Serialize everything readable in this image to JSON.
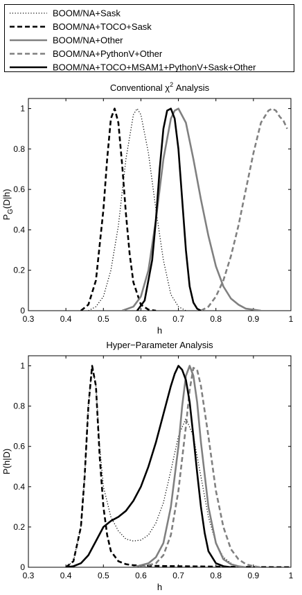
{
  "legend": {
    "placement": "top",
    "entries": [
      {
        "label": "BOOM/NA+Sask",
        "color": "#000000",
        "dash": "dotted"
      },
      {
        "label": "BOOM/NA+TOCO+Sask",
        "color": "#000000",
        "dash": "dashed"
      },
      {
        "label": "BOOM/NA+Other",
        "color": "#808080",
        "dash": "solid"
      },
      {
        "label": "BOOM/NA+PythonV+Other",
        "color": "#808080",
        "dash": "dashed"
      },
      {
        "label": "BOOM/NA+TOCO+MSAM1+PythonV+Sask+Other",
        "color": "#000000",
        "dash": "solid"
      }
    ]
  },
  "chart_data": [
    {
      "type": "line",
      "title_main": "Conventional χ",
      "title_sup": "2",
      "title_tail": " Analysis",
      "xlabel": "h",
      "ylabel_main": "P",
      "ylabel_sub": "G",
      "ylabel_tail": "(D|h)",
      "xlim": [
        0.3,
        1.0
      ],
      "ylim": [
        0,
        1.05
      ],
      "xticks": [
        "0.3",
        "0.4",
        "0.5",
        "0.6",
        "0.7",
        "0.8",
        "0.9",
        "1"
      ],
      "yticks": [
        "0",
        "0.2",
        "0.4",
        "0.6",
        "0.8",
        "1"
      ],
      "series": [
        {
          "name": "BOOM/NA+Sask",
          "color": "#000000",
          "dash": "dotted",
          "x": [
            0.46,
            0.48,
            0.5,
            0.52,
            0.54,
            0.56,
            0.58,
            0.59,
            0.6,
            0.62,
            0.64,
            0.66,
            0.68,
            0.7,
            0.72
          ],
          "y": [
            0.0,
            0.02,
            0.07,
            0.2,
            0.42,
            0.75,
            0.97,
            1.0,
            0.97,
            0.78,
            0.5,
            0.25,
            0.08,
            0.02,
            0.0
          ]
        },
        {
          "name": "BOOM/NA+TOCO+Sask",
          "color": "#000000",
          "dash": "dashed",
          "x": [
            0.44,
            0.46,
            0.48,
            0.5,
            0.51,
            0.52,
            0.53,
            0.54,
            0.55,
            0.56,
            0.57,
            0.58,
            0.6,
            0.62,
            0.64
          ],
          "y": [
            0.0,
            0.03,
            0.15,
            0.5,
            0.75,
            0.95,
            1.0,
            0.93,
            0.72,
            0.48,
            0.28,
            0.14,
            0.03,
            0.005,
            0.0
          ]
        },
        {
          "name": "BOOM/NA+Other",
          "color": "#808080",
          "dash": "solid",
          "x": [
            0.55,
            0.58,
            0.6,
            0.62,
            0.64,
            0.66,
            0.68,
            0.69,
            0.7,
            0.72,
            0.74,
            0.76,
            0.78,
            0.8,
            0.82,
            0.84,
            0.86,
            0.88,
            0.9,
            0.92
          ],
          "y": [
            0.0,
            0.02,
            0.07,
            0.2,
            0.45,
            0.75,
            0.95,
            0.99,
            1.0,
            0.93,
            0.75,
            0.55,
            0.37,
            0.22,
            0.12,
            0.06,
            0.03,
            0.01,
            0.005,
            0.0
          ]
        },
        {
          "name": "BOOM/NA+PythonV+Other",
          "color": "#808080",
          "dash": "dashed",
          "x": [
            0.76,
            0.78,
            0.8,
            0.82,
            0.84,
            0.86,
            0.88,
            0.9,
            0.92,
            0.94,
            0.95,
            0.96,
            0.97,
            0.98,
            0.99
          ],
          "y": [
            0.0,
            0.02,
            0.07,
            0.15,
            0.27,
            0.42,
            0.6,
            0.78,
            0.93,
            0.99,
            1.0,
            0.99,
            0.96,
            0.94,
            0.9
          ]
        },
        {
          "name": "BOOM/NA+TOCO+MSAM1+PythonV+Sask+Other",
          "color": "#000000",
          "dash": "solid",
          "x": [
            0.59,
            0.61,
            0.63,
            0.64,
            0.65,
            0.66,
            0.67,
            0.68,
            0.69,
            0.7,
            0.71,
            0.72,
            0.73,
            0.74,
            0.75,
            0.76
          ],
          "y": [
            0.0,
            0.05,
            0.25,
            0.45,
            0.7,
            0.9,
            0.99,
            1.0,
            0.95,
            0.8,
            0.55,
            0.3,
            0.12,
            0.04,
            0.01,
            0.0
          ]
        }
      ]
    },
    {
      "type": "line",
      "title_main": "Hyper−Parameter Analysis",
      "title_sup": "",
      "title_tail": "",
      "xlabel": "h",
      "ylabel_main": "P(h|D)",
      "ylabel_sub": "",
      "ylabel_tail": "",
      "xlim": [
        0.3,
        1.0
      ],
      "ylim": [
        0,
        1.05
      ],
      "xticks": [
        "0.3",
        "0.4",
        "0.5",
        "0.6",
        "0.7",
        "0.8",
        "0.9",
        "1"
      ],
      "yticks": [
        "0",
        "0.2",
        "0.4",
        "0.6",
        "0.8",
        "1"
      ],
      "series": [
        {
          "name": "BOOM/NA+Sask",
          "color": "#000000",
          "dash": "dotted",
          "x": [
            0.4,
            0.42,
            0.44,
            0.45,
            0.46,
            0.47,
            0.48,
            0.49,
            0.5,
            0.52,
            0.54,
            0.56,
            0.58,
            0.6,
            0.62,
            0.64,
            0.66,
            0.68,
            0.7,
            0.72,
            0.74,
            0.76,
            0.78,
            0.8,
            0.82,
            0.84,
            0.86
          ],
          "y": [
            0.0,
            0.03,
            0.2,
            0.45,
            0.8,
            1.0,
            0.9,
            0.6,
            0.4,
            0.25,
            0.18,
            0.14,
            0.13,
            0.135,
            0.16,
            0.22,
            0.32,
            0.48,
            0.65,
            0.74,
            0.65,
            0.45,
            0.25,
            0.12,
            0.05,
            0.02,
            0.0
          ]
        },
        {
          "name": "BOOM/NA+TOCO+Sask",
          "color": "#000000",
          "dash": "dashed",
          "x": [
            0.4,
            0.42,
            0.44,
            0.45,
            0.46,
            0.47,
            0.48,
            0.49,
            0.5,
            0.51,
            0.52,
            0.54,
            0.56,
            0.58,
            0.6,
            0.7,
            0.8,
            0.9,
            1.0
          ],
          "y": [
            0.0,
            0.03,
            0.2,
            0.45,
            0.8,
            1.0,
            0.9,
            0.55,
            0.3,
            0.16,
            0.08,
            0.03,
            0.015,
            0.01,
            0.008,
            0.005,
            0.003,
            0.001,
            0.0
          ]
        },
        {
          "name": "BOOM/NA+Other",
          "color": "#808080",
          "dash": "solid",
          "x": [
            0.58,
            0.62,
            0.64,
            0.66,
            0.68,
            0.7,
            0.71,
            0.72,
            0.73,
            0.74,
            0.75,
            0.76,
            0.78,
            0.8,
            0.82,
            0.84,
            0.86,
            0.88
          ],
          "y": [
            0.0,
            0.02,
            0.05,
            0.12,
            0.3,
            0.6,
            0.8,
            0.95,
            1.0,
            0.95,
            0.82,
            0.62,
            0.3,
            0.12,
            0.04,
            0.015,
            0.005,
            0.0
          ]
        },
        {
          "name": "BOOM/NA+PythonV+Other",
          "color": "#808080",
          "dash": "dashed",
          "x": [
            0.6,
            0.64,
            0.66,
            0.68,
            0.7,
            0.72,
            0.73,
            0.74,
            0.75,
            0.76,
            0.78,
            0.8,
            0.82,
            0.84,
            0.86,
            0.88,
            0.9,
            0.92
          ],
          "y": [
            0.0,
            0.02,
            0.06,
            0.16,
            0.38,
            0.7,
            0.88,
            0.99,
            0.98,
            0.9,
            0.65,
            0.38,
            0.2,
            0.09,
            0.04,
            0.015,
            0.005,
            0.0
          ]
        },
        {
          "name": "BOOM/NA+TOCO+MSAM1+PythonV+Sask+Other",
          "color": "#000000",
          "dash": "solid",
          "x": [
            0.4,
            0.42,
            0.44,
            0.46,
            0.48,
            0.5,
            0.52,
            0.54,
            0.56,
            0.58,
            0.6,
            0.62,
            0.64,
            0.66,
            0.68,
            0.69,
            0.7,
            0.71,
            0.72,
            0.73,
            0.74,
            0.75,
            0.76,
            0.77,
            0.78,
            0.8,
            0.82,
            0.84
          ],
          "y": [
            0.0,
            0.005,
            0.02,
            0.06,
            0.13,
            0.2,
            0.23,
            0.25,
            0.28,
            0.33,
            0.4,
            0.5,
            0.62,
            0.76,
            0.9,
            0.96,
            1.0,
            0.98,
            0.93,
            0.82,
            0.65,
            0.47,
            0.3,
            0.17,
            0.08,
            0.02,
            0.005,
            0.0
          ]
        }
      ]
    }
  ]
}
